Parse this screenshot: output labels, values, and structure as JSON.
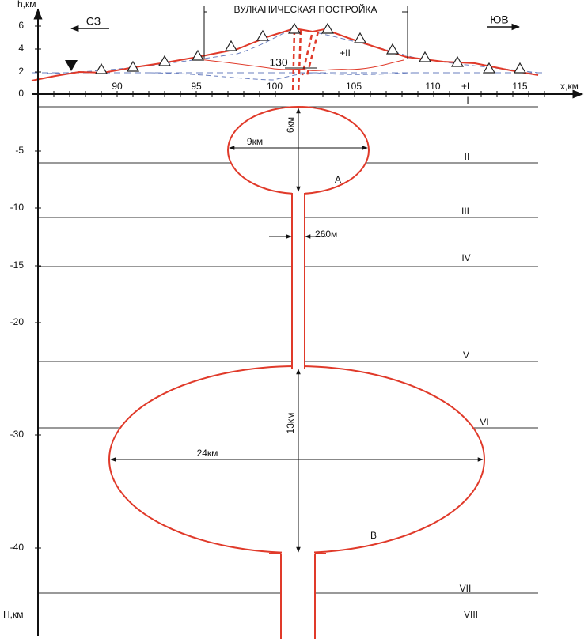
{
  "header": {
    "title": "ВУЛКАНИЧЕСКАЯ ПОСТРОЙКА",
    "left_direction": "СЗ",
    "right_direction": "ЮВ"
  },
  "axes": {
    "h_label": "h,км",
    "H_label": "H,км",
    "x_label": "x,км",
    "y_ticks": [
      "6",
      "4",
      "2",
      "0",
      "-5",
      "-10",
      "-15",
      "-20",
      "-30",
      "-40"
    ],
    "x_ticks": [
      "90",
      "95",
      "100",
      "105",
      "110",
      "115"
    ]
  },
  "annotations": {
    "width_130": "130",
    "block_plus_two": "+II",
    "block_plus_one": "+I"
  },
  "layers": [
    "I",
    "II",
    "III",
    "IV",
    "V",
    "VI",
    "VII",
    "VIII"
  ],
  "chambers": [
    {
      "label": "A",
      "height": "6км",
      "width": "9км"
    },
    {
      "label": "B",
      "height": "13км",
      "width": "24км"
    }
  ],
  "conduit": {
    "width": "260м"
  }
}
